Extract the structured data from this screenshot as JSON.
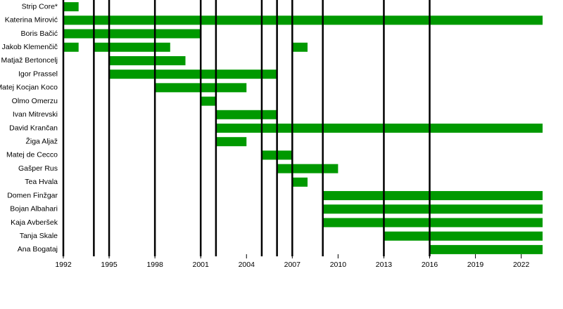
{
  "chart_data": {
    "type": "timeline",
    "color": "#009900",
    "xlim": [
      1992,
      2023.4
    ],
    "xticks": [
      1992,
      1995,
      1998,
      2001,
      2004,
      2007,
      2010,
      2013,
      2016,
      2019,
      2022
    ],
    "lines": [
      1992,
      1994,
      1995,
      1998,
      2001,
      2002,
      2005,
      2006,
      2007,
      2009,
      2013,
      2016
    ],
    "rows": [
      {
        "name": "Strip Core*",
        "periods": [
          [
            1992,
            1993
          ]
        ]
      },
      {
        "name": "Katerina Mirović",
        "periods": [
          [
            1992,
            2023.4
          ]
        ]
      },
      {
        "name": "Boris Bačić",
        "periods": [
          [
            1992,
            2001
          ]
        ]
      },
      {
        "name": "Jakob Klemenčič",
        "periods": [
          [
            1992,
            1993
          ],
          [
            1994,
            1999
          ],
          [
            2007,
            2008
          ]
        ]
      },
      {
        "name": "Matjaž Bertoncelj",
        "periods": [
          [
            1995,
            2000
          ]
        ]
      },
      {
        "name": "Igor Prassel",
        "periods": [
          [
            1995,
            2006
          ]
        ]
      },
      {
        "name": "Matej Kocjan Koco",
        "periods": [
          [
            1998,
            2004
          ]
        ]
      },
      {
        "name": "Olmo Omerzu",
        "periods": [
          [
            2001,
            2002
          ]
        ]
      },
      {
        "name": "Ivan Mitrevski",
        "periods": [
          [
            2002,
            2006
          ]
        ]
      },
      {
        "name": "David Krančan",
        "periods": [
          [
            2002,
            2023.4
          ]
        ]
      },
      {
        "name": "Žiga Aljaž",
        "periods": [
          [
            2002,
            2004
          ]
        ]
      },
      {
        "name": "Matej de Cecco",
        "periods": [
          [
            2005,
            2007
          ]
        ]
      },
      {
        "name": "Gašper Rus",
        "periods": [
          [
            2006,
            2010
          ]
        ]
      },
      {
        "name": "Tea Hvala",
        "periods": [
          [
            2007,
            2008
          ]
        ]
      },
      {
        "name": "Domen Finžgar",
        "periods": [
          [
            2009,
            2023.4
          ]
        ]
      },
      {
        "name": "Bojan Albahari",
        "periods": [
          [
            2009,
            2023.4
          ]
        ]
      },
      {
        "name": "Kaja Avberšek",
        "periods": [
          [
            2009,
            2023.4
          ]
        ]
      },
      {
        "name": "Tanja Skale",
        "periods": [
          [
            2013,
            2023.4
          ]
        ]
      },
      {
        "name": "Ana Bogataj",
        "periods": [
          [
            2016,
            2023.4
          ]
        ]
      }
    ]
  }
}
